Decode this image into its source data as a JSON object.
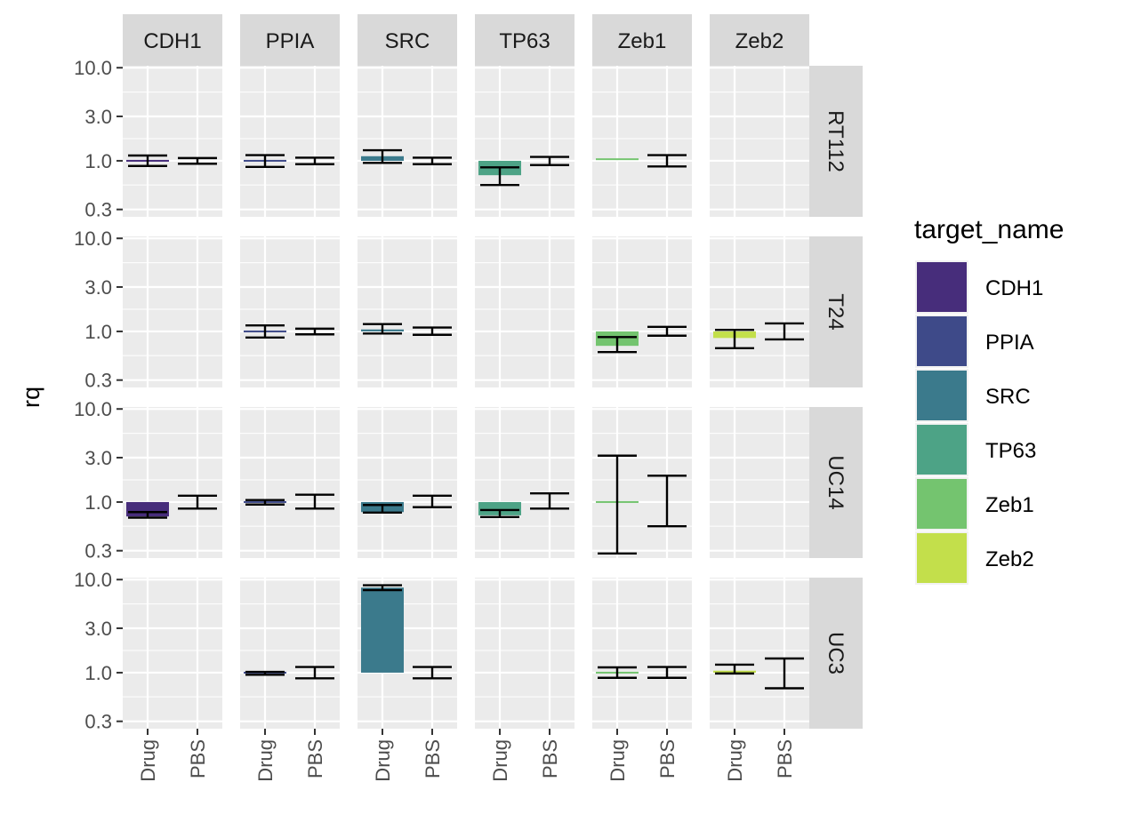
{
  "chart_data": {
    "type": "bar",
    "ylabel": "rq",
    "yscale": "log10",
    "ylim": [
      0.25,
      10.5
    ],
    "yticks": [
      0.3,
      1.0,
      3.0,
      10.0
    ],
    "ytick_labels": [
      "0.3",
      "1.0",
      "3.0",
      "10.0"
    ],
    "x_categories": [
      "Drug",
      "PBS"
    ],
    "col_facets": [
      "CDH1",
      "PPIA",
      "SRC",
      "TP63",
      "Zeb1",
      "Zeb2"
    ],
    "row_facets": [
      "RT112",
      "T24",
      "UC14",
      "UC3"
    ],
    "legend": {
      "title": "target_name",
      "placement": "right",
      "items": [
        {
          "name": "CDH1",
          "color": "#472D7B"
        },
        {
          "name": "PPIA",
          "color": "#3E4A89"
        },
        {
          "name": "SRC",
          "color": "#3B7A8C"
        },
        {
          "name": "TP63",
          "color": "#4DA386"
        },
        {
          "name": "Zeb1",
          "color": "#74C46F"
        },
        {
          "name": "Zeb2",
          "color": "#C3DF4B"
        }
      ]
    },
    "data": [
      {
        "row": "RT112",
        "col": "CDH1",
        "drug": {
          "value": 1.0,
          "err": [
            0.88,
            1.14
          ]
        },
        "pbs": {
          "err": [
            0.93,
            1.07
          ]
        }
      },
      {
        "row": "RT112",
        "col": "PPIA",
        "drug": {
          "value": 1.0,
          "err": [
            0.86,
            1.15
          ]
        },
        "pbs": {
          "err": [
            0.92,
            1.08
          ]
        }
      },
      {
        "row": "RT112",
        "col": "SRC",
        "drug": {
          "value": 1.12,
          "err": [
            0.95,
            1.3
          ]
        },
        "pbs": {
          "err": [
            0.92,
            1.08
          ]
        }
      },
      {
        "row": "RT112",
        "col": "TP63",
        "drug": {
          "value": 0.7,
          "err": [
            0.55,
            0.85
          ]
        },
        "pbs": {
          "err": [
            0.9,
            1.1
          ]
        }
      },
      {
        "row": "RT112",
        "col": "Zeb1",
        "drug": {
          "value": 1.04,
          "err": null
        },
        "pbs": {
          "err": [
            0.87,
            1.15
          ]
        }
      },
      {
        "row": "T24",
        "col": "PPIA",
        "drug": {
          "value": 1.0,
          "err": [
            0.86,
            1.16
          ]
        },
        "pbs": {
          "err": [
            0.93,
            1.07
          ]
        }
      },
      {
        "row": "T24",
        "col": "SRC",
        "drug": {
          "value": 1.05,
          "err": [
            0.95,
            1.2
          ]
        },
        "pbs": {
          "err": [
            0.92,
            1.1
          ]
        }
      },
      {
        "row": "T24",
        "col": "Zeb1",
        "drug": {
          "value": 0.7,
          "err": [
            0.6,
            0.87
          ]
        },
        "pbs": {
          "err": [
            0.9,
            1.12
          ]
        }
      },
      {
        "row": "T24",
        "col": "Zeb2",
        "drug": {
          "value": 0.85,
          "err": [
            0.66,
            1.04
          ]
        },
        "pbs": {
          "err": [
            0.82,
            1.22
          ]
        }
      },
      {
        "row": "UC14",
        "col": "CDH1",
        "drug": {
          "value": 0.7,
          "err": [
            0.68,
            0.78
          ]
        },
        "pbs": {
          "err": [
            0.85,
            1.17
          ]
        }
      },
      {
        "row": "UC14",
        "col": "PPIA",
        "drug": {
          "value": 1.0,
          "err": [
            0.94,
            1.05
          ]
        },
        "pbs": {
          "err": [
            0.85,
            1.2
          ]
        }
      },
      {
        "row": "UC14",
        "col": "SRC",
        "drug": {
          "value": 0.78,
          "err": [
            0.77,
            0.93
          ]
        },
        "pbs": {
          "err": [
            0.88,
            1.17
          ]
        }
      },
      {
        "row": "UC14",
        "col": "TP63",
        "drug": {
          "value": 0.72,
          "err": [
            0.69,
            0.82
          ]
        },
        "pbs": {
          "err": [
            0.85,
            1.24
          ]
        }
      },
      {
        "row": "UC14",
        "col": "Zeb1",
        "drug": {
          "value": 1.0,
          "err": [
            0.28,
            3.15
          ]
        },
        "pbs": {
          "err": [
            0.55,
            1.92
          ]
        }
      },
      {
        "row": "UC3",
        "col": "PPIA",
        "drug": {
          "value": 0.97,
          "err": [
            0.95,
            1.02
          ]
        },
        "pbs": {
          "err": [
            0.87,
            1.15
          ]
        }
      },
      {
        "row": "UC3",
        "col": "SRC",
        "drug": {
          "value": 8.2,
          "err": [
            7.7,
            8.7
          ]
        },
        "pbs": {
          "err": [
            0.87,
            1.15
          ]
        }
      },
      {
        "row": "UC3",
        "col": "Zeb1",
        "drug": {
          "value": 1.0,
          "err": [
            0.88,
            1.14
          ]
        },
        "pbs": {
          "err": [
            0.88,
            1.15
          ]
        }
      },
      {
        "row": "UC3",
        "col": "Zeb2",
        "drug": {
          "value": 1.05,
          "err": [
            0.98,
            1.22
          ]
        },
        "pbs": {
          "err": [
            0.68,
            1.42
          ]
        }
      }
    ]
  }
}
